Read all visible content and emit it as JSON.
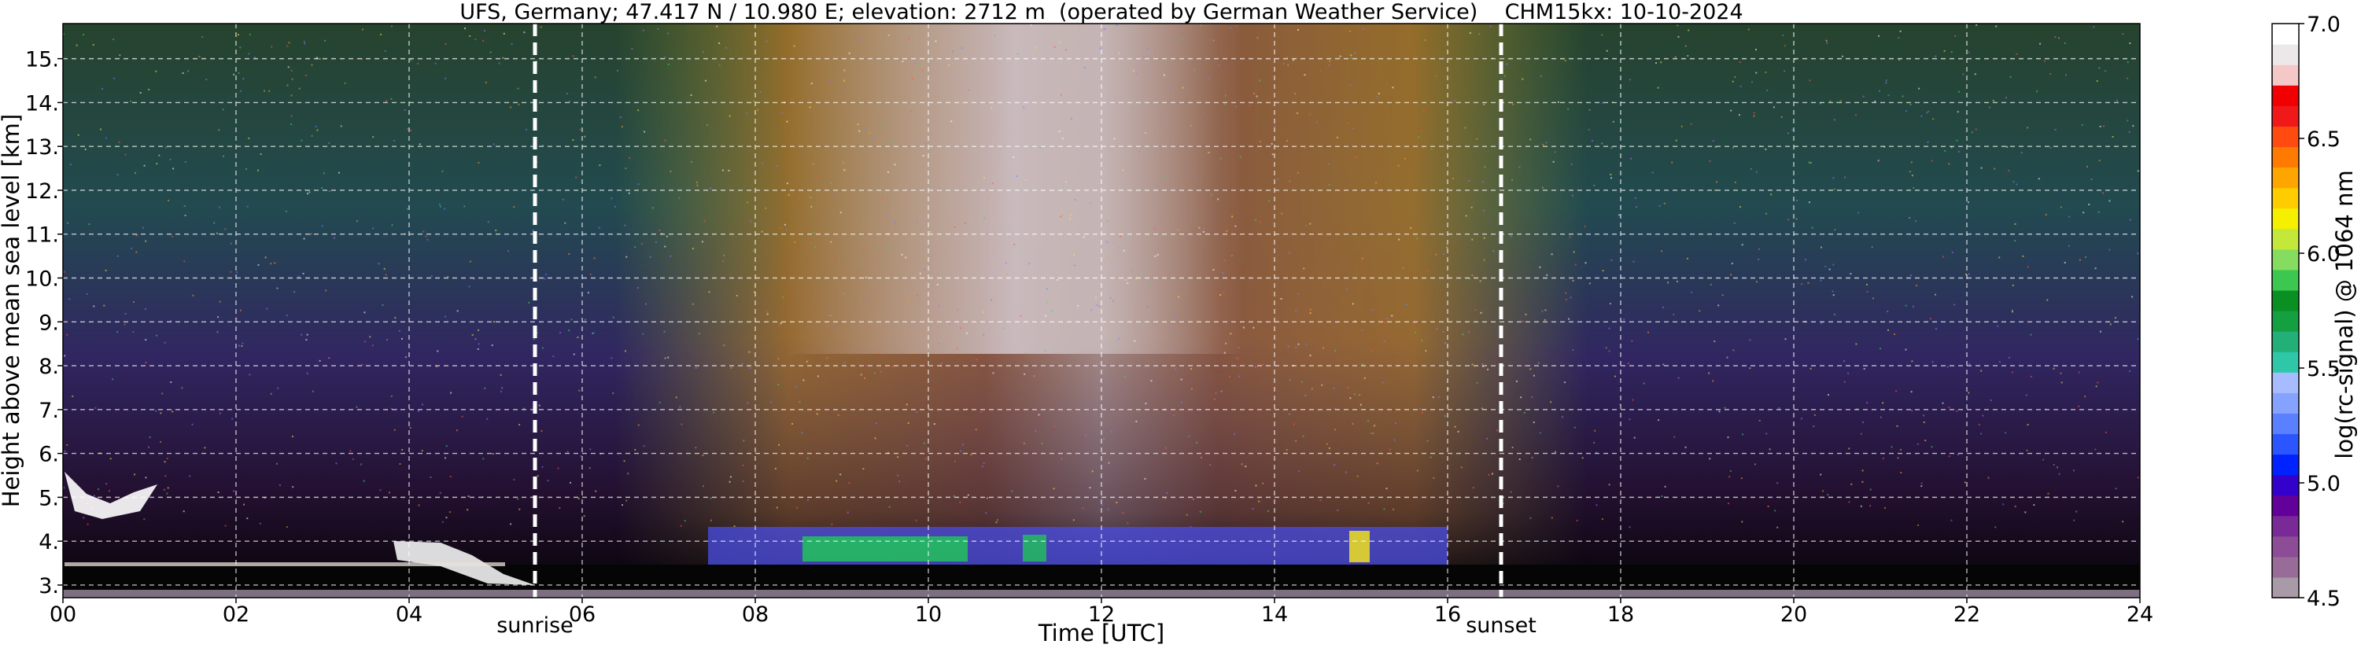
{
  "chart_data": {
    "type": "heatmap",
    "title": "UFS, Germany; 47.417 N / 10.980 E; elevation: 2712 m  (operated by German Weather Service)    CHM15kx: 10-10-2024",
    "xlabel": "Time [UTC]",
    "ylabel": "Height above mean sea level [km]",
    "xlim": [
      0,
      24
    ],
    "ylim": [
      2.712,
      15.8
    ],
    "x_ticks": [
      "00",
      "02",
      "04",
      "06",
      "08",
      "10",
      "12",
      "14",
      "16",
      "18",
      "20",
      "22",
      "24"
    ],
    "y_ticks": [
      "3.",
      "4.",
      "5.",
      "6.",
      "7.",
      "8.",
      "9.",
      "10.",
      "11.",
      "12.",
      "13.",
      "14.",
      "15."
    ],
    "grid": true,
    "events": [
      {
        "label": "sunrise",
        "time": 5.4
      },
      {
        "label": "sunset",
        "time": 16.55
      }
    ],
    "colorbar": {
      "label": "log(rc-signal) @ 1064 nm",
      "range": [
        4.5,
        7.0
      ],
      "ticks": [
        "4.5",
        "5.0",
        "5.5",
        "6.0",
        "6.5",
        "7.0"
      ],
      "colors": [
        "#a89aa6",
        "#986b98",
        "#8c4d96",
        "#7a2a96",
        "#63009a",
        "#3300cc",
        "#0022ff",
        "#2a55ff",
        "#5a80ff",
        "#86a2ff",
        "#a7bcff",
        "#2ec7a8",
        "#23b078",
        "#14a040",
        "#0a8f22",
        "#3cc850",
        "#86dc5e",
        "#c4e83a",
        "#f4f000",
        "#ffcc00",
        "#ffa500",
        "#ff7a00",
        "#ff4a10",
        "#f01818",
        "#f00000",
        "#f5c8c8",
        "#ece8ea",
        "#ffffff"
      ]
    }
  }
}
